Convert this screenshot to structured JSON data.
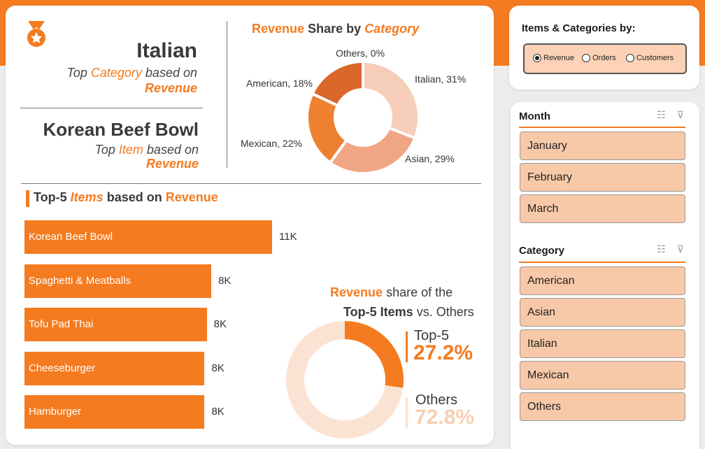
{
  "kpi": {
    "top_category": "Italian",
    "top_category_sub_pre": "Top",
    "top_category_sub_kw": "Category",
    "top_category_sub_post": "based on",
    "top_category_metric": "Revenue",
    "top_item": "Korean Beef Bowl",
    "top_item_sub_pre": "Top",
    "top_item_sub_kw": "Item",
    "top_item_sub_post": "based on",
    "top_item_metric": "Revenue"
  },
  "category_donut": {
    "title_kw1": "Revenue",
    "title_mid": "Share by",
    "title_kw2": "Category",
    "labels": [
      "Others, 0%",
      "Italian, 31%",
      "Asian, 29%",
      "Mexican, 22%",
      "American, 18%"
    ]
  },
  "top5": {
    "title_pre": "Top-5",
    "title_kw": "Items",
    "title_mid": "based on",
    "title_kw2": "Revenue"
  },
  "share_donut": {
    "title_kw": "Revenue",
    "title_post": "share of the",
    "title_line2_bold": "Top-5 Items",
    "title_line2_post": "vs. Others",
    "top5_label": "Top-5",
    "top5_value": "27.2%",
    "others_label": "Others",
    "others_value": "72.8%"
  },
  "options": {
    "title": "Items & Categories by:",
    "radios": [
      "Revenue",
      "Orders",
      "Customers"
    ],
    "selected": "Revenue"
  },
  "slicers": {
    "month": {
      "title": "Month",
      "items": [
        "January",
        "February",
        "March"
      ]
    },
    "category": {
      "title": "Category",
      "items": [
        "American",
        "Asian",
        "Italian",
        "Mexican",
        "Others"
      ]
    }
  },
  "colors": {
    "accent": "#f47b20",
    "pale": "#f8c9a8",
    "donut": [
      "#f5cdb8",
      "#f0a683",
      "#ee8130",
      "#d9682a"
    ]
  },
  "chart_data": [
    {
      "type": "pie",
      "title": "Revenue Share by Category",
      "categories": [
        "Italian",
        "Asian",
        "Mexican",
        "American",
        "Others"
      ],
      "values": [
        31,
        29,
        22,
        18,
        0
      ]
    },
    {
      "type": "bar",
      "title": "Top-5 Items based on Revenue",
      "categories": [
        "Korean Beef Bowl",
        "Spaghetti & Meatballs",
        "Tofu Pad Thai",
        "Cheeseburger",
        "Hamburger"
      ],
      "values": [
        11000,
        8300,
        8100,
        8000,
        8000
      ],
      "value_labels": [
        "11K",
        "8K",
        "8K",
        "8K",
        "8K"
      ],
      "xlim": [
        0,
        11000
      ]
    },
    {
      "type": "pie",
      "title": "Revenue share of the Top-5 Items vs. Others",
      "categories": [
        "Top-5",
        "Others"
      ],
      "values": [
        27.2,
        72.8
      ]
    }
  ]
}
